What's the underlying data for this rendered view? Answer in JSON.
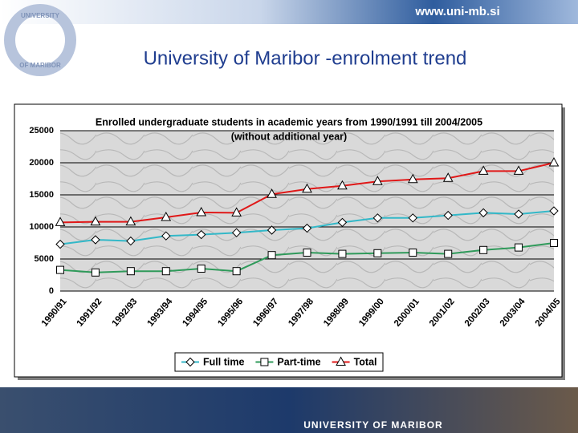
{
  "header": {
    "url": "www.uni-mb.si"
  },
  "slide": {
    "title": "University of Maribor -enrolment trend"
  },
  "logo": {
    "top": "UNIVERSITY",
    "bottom": "OF MARIBOR"
  },
  "footer": {
    "text": "UNIVERSITY OF MARIBOR"
  },
  "chart_data": {
    "type": "line",
    "title": "Enrolled undergraduate students in academic years from 1990/1991 till 2004/2005",
    "subtitle": "(without additional year)",
    "categories": [
      "1990/91",
      "1991/92",
      "1992/93",
      "1993/94",
      "1994/95",
      "1995/96",
      "1996/97",
      "1997/98",
      "1998/99",
      "1999/00",
      "2000/01",
      "2001/02",
      "2002/03",
      "2003/04",
      "2004/05"
    ],
    "series": [
      {
        "name": "Full time",
        "color": "#33b8c8",
        "marker": "diamond",
        "values": [
          7300,
          8000,
          7800,
          8600,
          8800,
          9100,
          9500,
          9800,
          10700,
          11400,
          11400,
          11800,
          12200,
          12000,
          12500
        ]
      },
      {
        "name": "Part-time",
        "color": "#2f9a5a",
        "marker": "square",
        "values": [
          3300,
          2900,
          3100,
          3100,
          3500,
          3100,
          5600,
          6000,
          5800,
          5900,
          6000,
          5800,
          6400,
          6800,
          7500
        ]
      },
      {
        "name": "Total",
        "color": "#e01818",
        "marker": "triangle",
        "values": [
          10700,
          10800,
          10800,
          11500,
          12250,
          12200,
          15100,
          15900,
          16400,
          17100,
          17400,
          17600,
          18700,
          18700,
          20000
        ]
      }
    ],
    "ylim": [
      0,
      25000
    ],
    "yticks": [
      0,
      5000,
      10000,
      15000,
      20000,
      25000
    ],
    "grid": true,
    "legend": "bottom"
  }
}
